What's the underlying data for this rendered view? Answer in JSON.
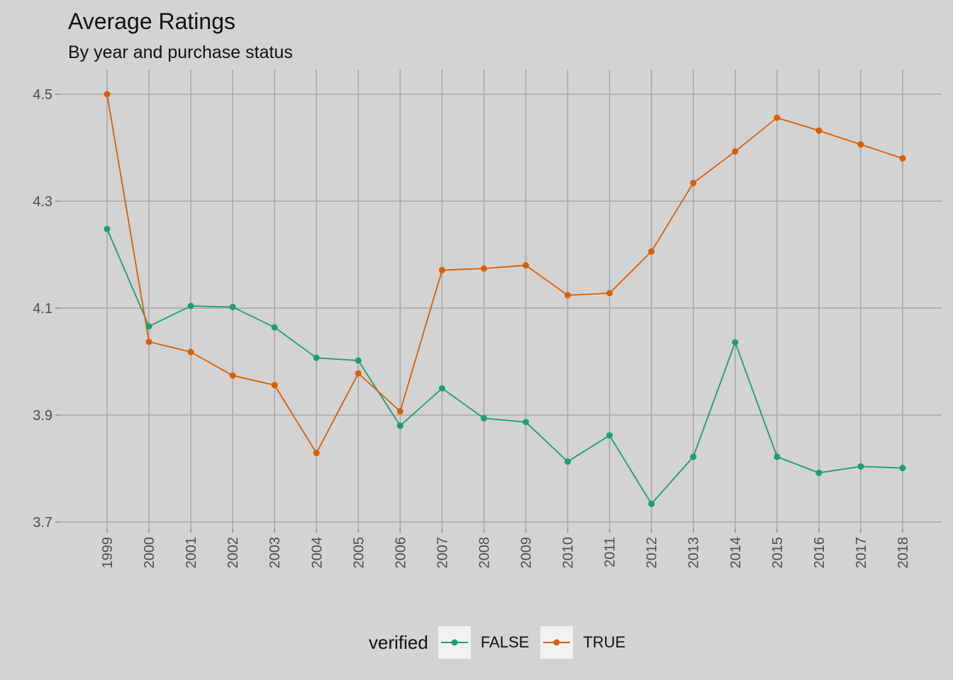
{
  "chart_data": {
    "type": "line",
    "title": "Average Ratings",
    "subtitle": "By year and purchase status",
    "xlabel": "",
    "ylabel": "",
    "ylim": [
      3.7,
      4.52
    ],
    "yticks": [
      "3.7",
      "3.9",
      "4.1",
      "4.3",
      "4.5"
    ],
    "x": [
      "1999",
      "2000",
      "2001",
      "2002",
      "2003",
      "2004",
      "2005",
      "2006",
      "2007",
      "2008",
      "2009",
      "2010",
      "2011",
      "2012",
      "2013",
      "2014",
      "2015",
      "2016",
      "2017",
      "2018"
    ],
    "legend_title": "verified",
    "legend_position": "bottom",
    "grid": true,
    "series": [
      {
        "name": "FALSE",
        "color": "#1b9e77",
        "values": [
          4.248,
          4.066,
          4.104,
          4.102,
          4.064,
          4.007,
          4.002,
          3.88,
          3.95,
          3.894,
          3.887,
          3.813,
          3.862,
          3.734,
          3.822,
          4.036,
          3.822,
          3.792,
          3.804,
          3.801
        ]
      },
      {
        "name": "TRUE",
        "color": "#d95f02",
        "values": [
          4.5,
          4.037,
          4.018,
          3.974,
          3.956,
          3.829,
          3.978,
          3.907,
          4.171,
          4.174,
          4.18,
          4.124,
          4.128,
          4.206,
          4.334,
          4.393,
          4.456,
          4.432,
          4.406,
          4.38
        ]
      }
    ]
  }
}
